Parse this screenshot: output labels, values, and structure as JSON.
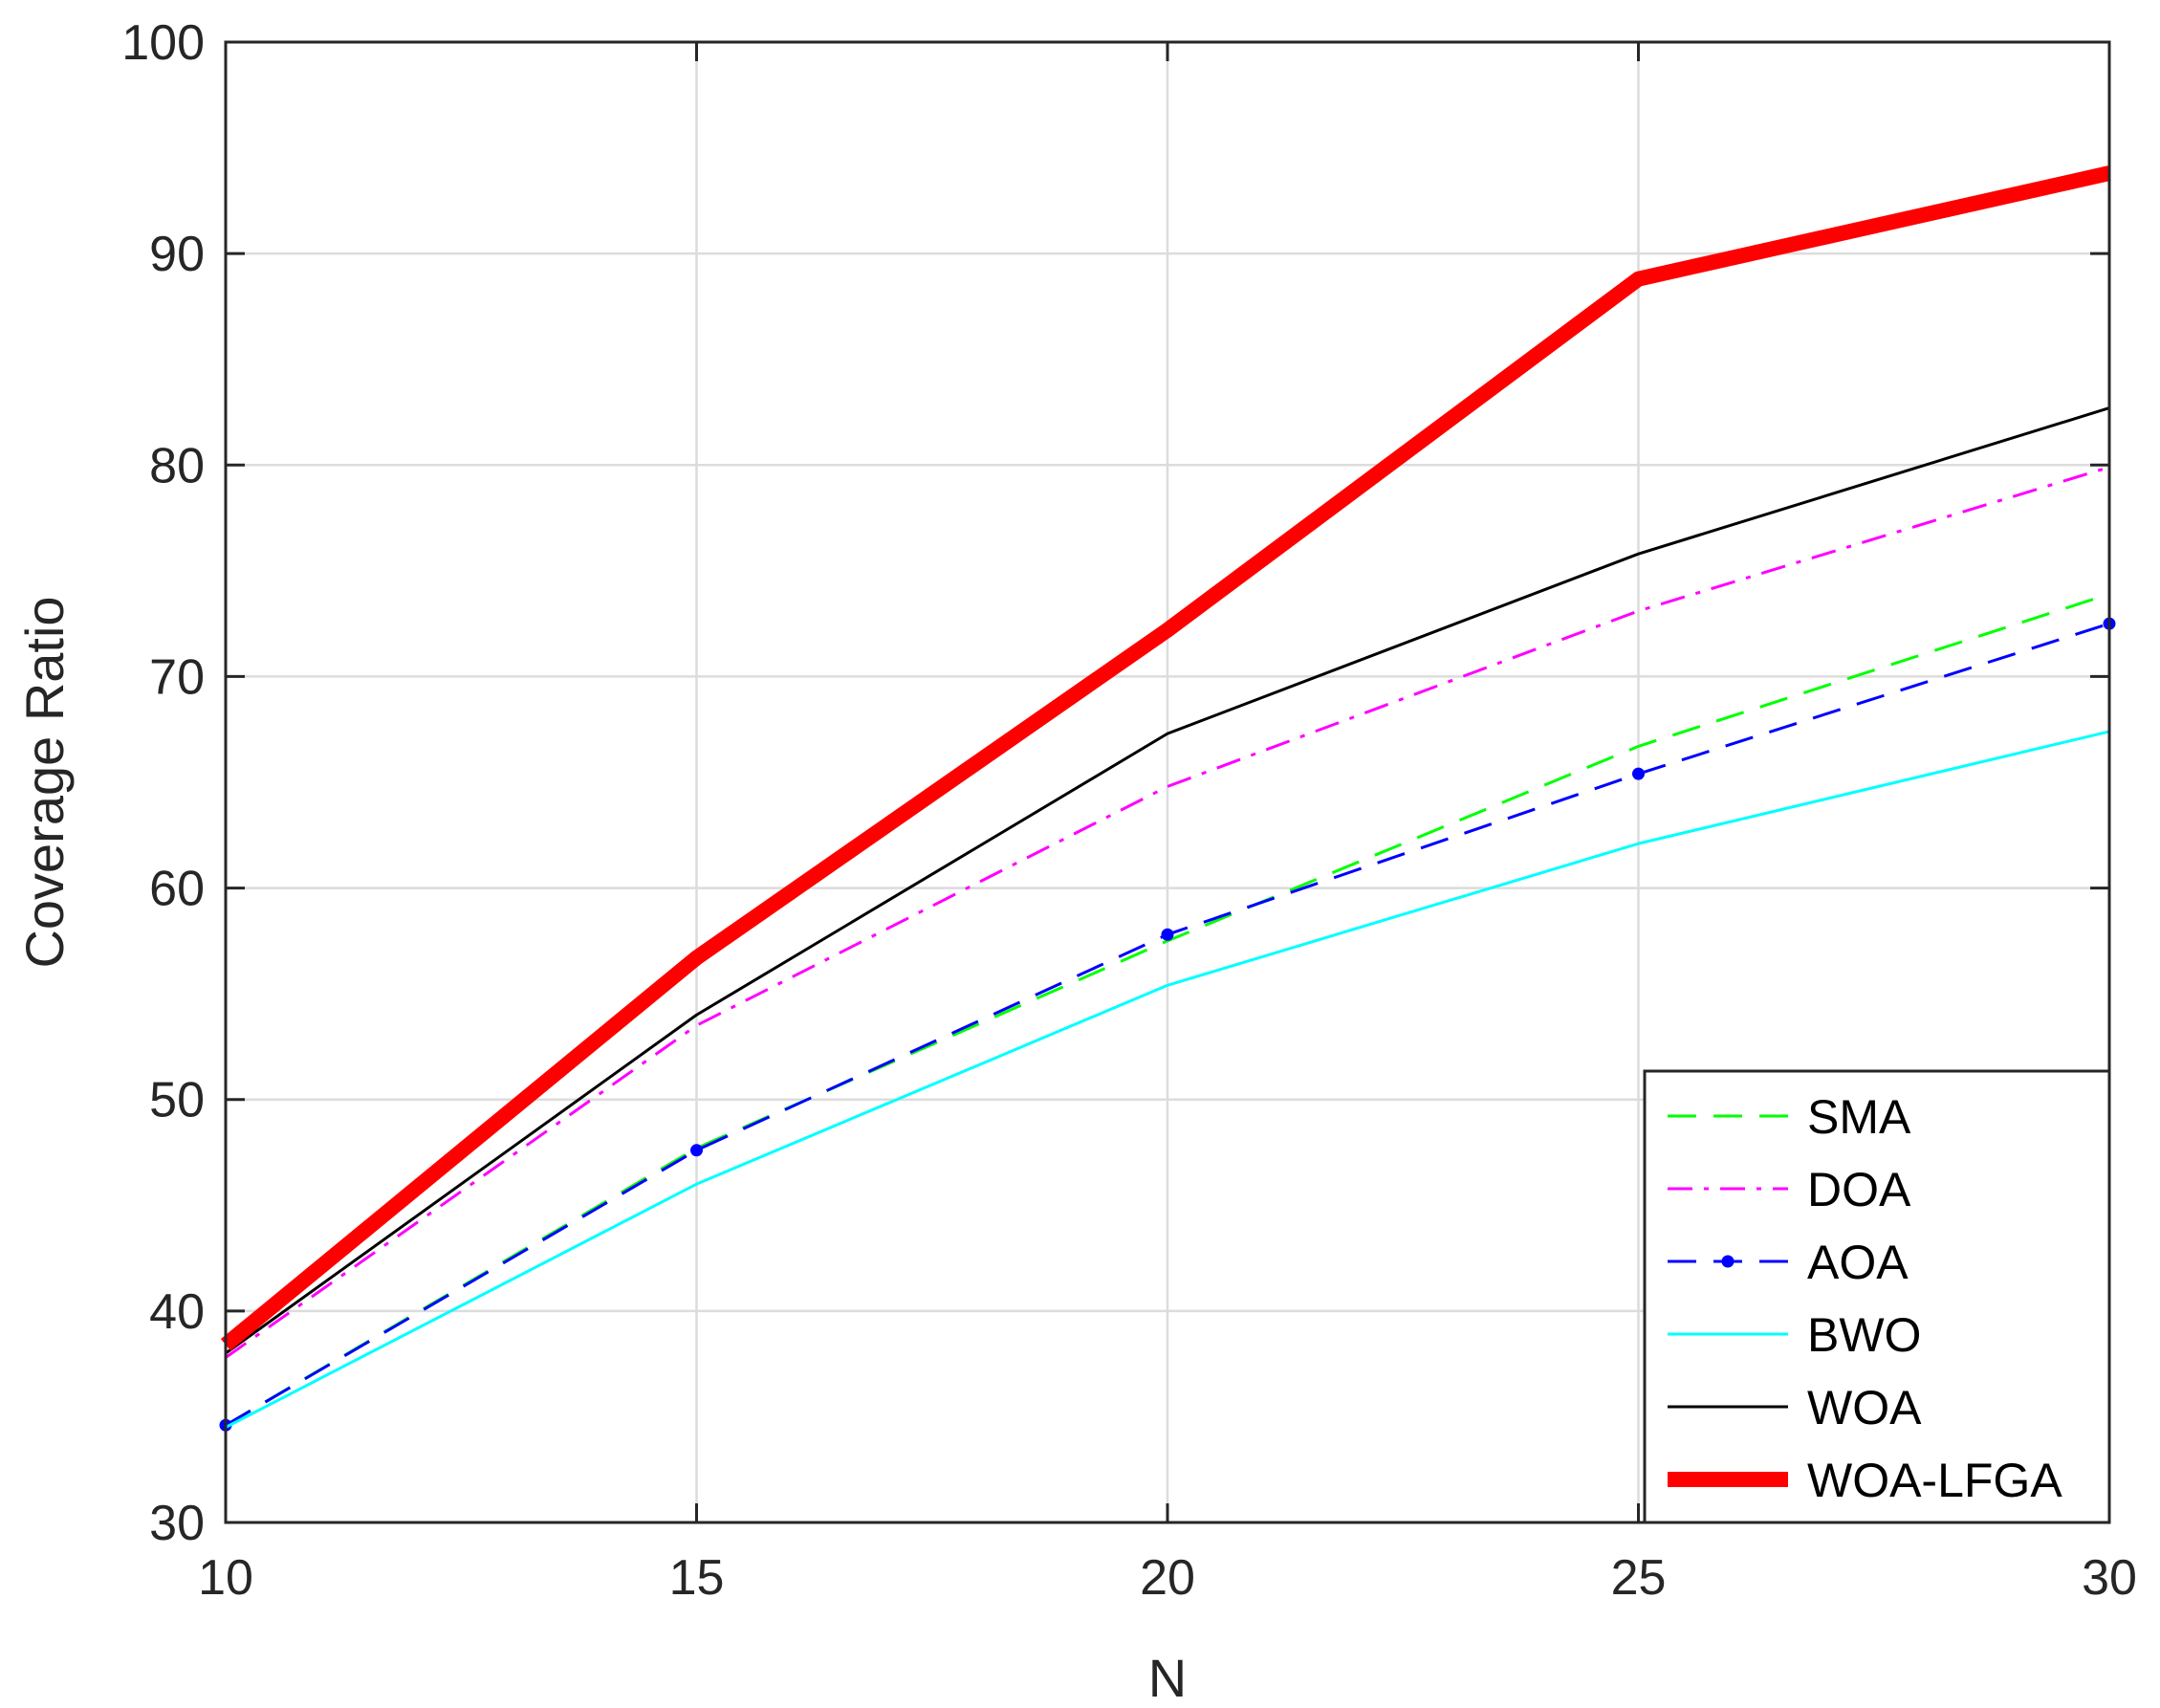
{
  "chart_data": {
    "type": "line",
    "title": "",
    "xlabel": "N",
    "ylabel": "Coverage Ratio",
    "x": [
      10,
      15,
      20,
      25,
      30
    ],
    "xlim": [
      10,
      30
    ],
    "ylim": [
      30,
      100
    ],
    "xticks": [
      "10",
      "15",
      "20",
      "25",
      "30"
    ],
    "yticks": [
      "30",
      "40",
      "50",
      "60",
      "70",
      "80",
      "90",
      "100"
    ],
    "grid": true,
    "legend_position": "bottom-right",
    "series": [
      {
        "name": "SMA",
        "values": [
          34.6,
          47.7,
          57.5,
          66.7,
          73.9
        ],
        "color": "#00ff00",
        "style": "dashed",
        "marker": "none",
        "width": "normal"
      },
      {
        "name": "DOA",
        "values": [
          37.8,
          53.5,
          64.8,
          73.1,
          79.9
        ],
        "color": "#ff00ff",
        "style": "dashdot",
        "marker": "none",
        "width": "normal"
      },
      {
        "name": "AOA",
        "values": [
          34.6,
          47.6,
          57.8,
          65.4,
          72.5
        ],
        "color": "#0000ff",
        "style": "dashed",
        "marker": "dot",
        "width": "normal"
      },
      {
        "name": "BWO",
        "values": [
          34.5,
          46.0,
          55.4,
          62.1,
          67.4
        ],
        "color": "#00ffff",
        "style": "solid",
        "marker": "none",
        "width": "normal"
      },
      {
        "name": "WOA",
        "values": [
          38.0,
          54.0,
          67.3,
          75.8,
          82.7
        ],
        "color": "#000000",
        "style": "solid",
        "marker": "none",
        "width": "normal"
      },
      {
        "name": "WOA-LFGA",
        "values": [
          38.4,
          56.7,
          72.2,
          88.8,
          93.8
        ],
        "color": "#ff0000",
        "style": "solid",
        "marker": "none",
        "width": "thick"
      }
    ]
  }
}
